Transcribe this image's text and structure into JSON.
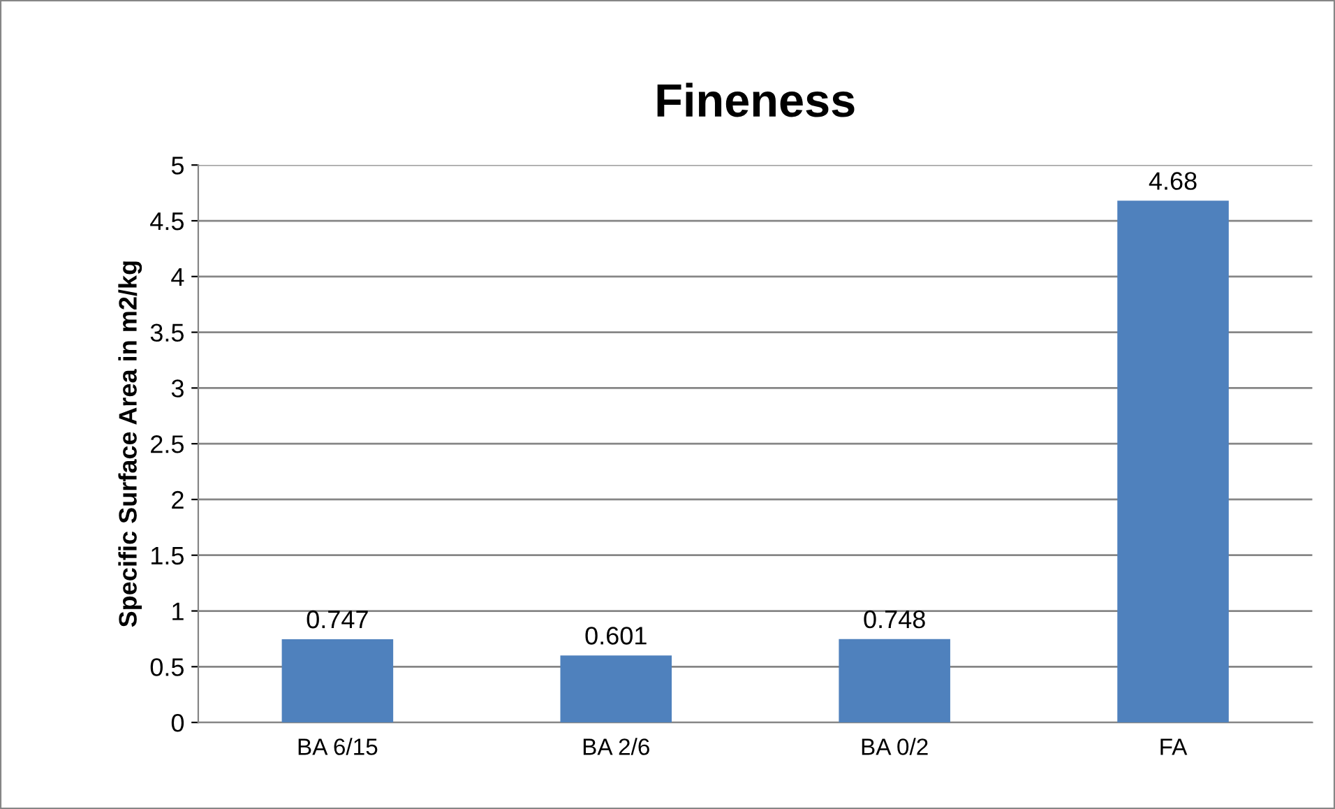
{
  "chart_data": {
    "type": "bar",
    "title": "Fineness",
    "ylabel": "Specific Surface Area in m2/kg",
    "categories": [
      "BA 6/15",
      "BA 2/6",
      "BA 0/2",
      "FA"
    ],
    "values": [
      0.747,
      0.601,
      0.748,
      4.68
    ],
    "color": "#4f81bd",
    "ylim": [
      0,
      5
    ],
    "yticks": [
      0,
      0.5,
      1,
      1.5,
      2,
      2.5,
      3,
      3.5,
      4,
      4.5,
      5
    ],
    "grid": "y",
    "data_labels": true,
    "legend": false
  }
}
